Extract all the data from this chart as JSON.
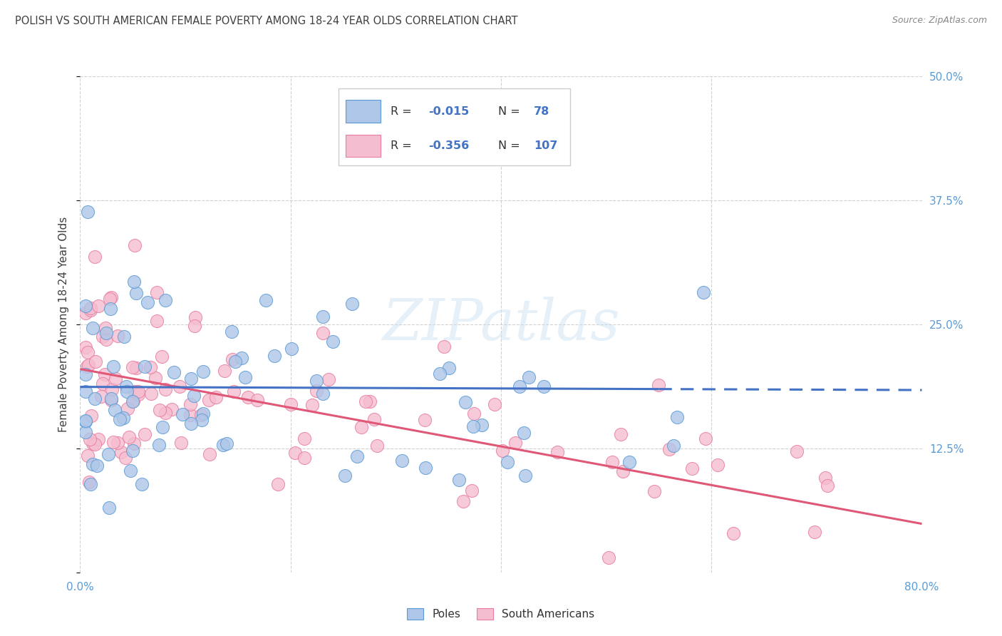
{
  "title": "POLISH VS SOUTH AMERICAN FEMALE POVERTY AMONG 18-24 YEAR OLDS CORRELATION CHART",
  "source": "Source: ZipAtlas.com",
  "ylabel": "Female Poverty Among 18-24 Year Olds",
  "xlim": [
    0.0,
    0.8
  ],
  "ylim": [
    0.0,
    0.5
  ],
  "poles_R": "-0.015",
  "poles_N": "78",
  "sa_R": "-0.356",
  "sa_N": "107",
  "poles_color": "#aec6e8",
  "poles_edge_color": "#5b9bd5",
  "poles_line_color": "#4472c4",
  "sa_color": "#f5bdd0",
  "sa_edge_color": "#e87da0",
  "sa_line_color": "#e05878",
  "watermark": "ZIPatlas",
  "background_color": "#ffffff",
  "grid_color": "#cccccc",
  "tick_color": "#5b9bd5",
  "title_color": "#404040",
  "source_color": "#888888",
  "ylabel_color": "#404040"
}
